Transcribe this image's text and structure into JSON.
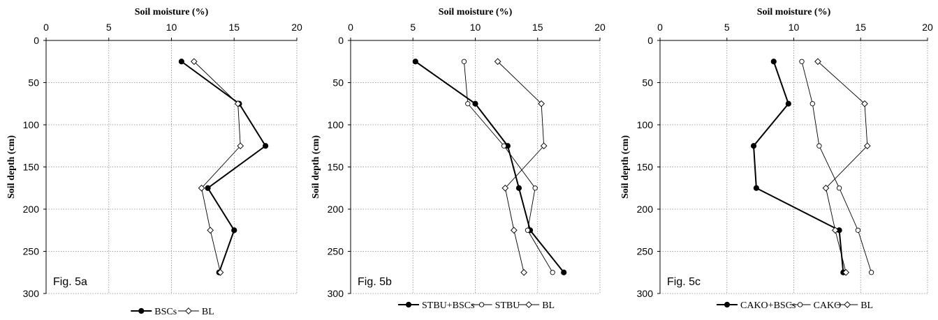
{
  "chart_data": [
    {
      "type": "line",
      "panel_label": "Fig. 5a",
      "xlabel": "Soil moisture (%)",
      "ylabel": "Soil depth (cm)",
      "xlim": [
        0,
        20
      ],
      "ylim": [
        0,
        300
      ],
      "y_inverted": true,
      "x_axis_position": "top",
      "x_ticks": [
        0,
        5,
        10,
        15,
        20
      ],
      "y_ticks": [
        0,
        50,
        100,
        150,
        200,
        250,
        300
      ],
      "grid": "dotted",
      "legend_position": "bottom",
      "series": [
        {
          "name": "BSCs",
          "marker": "filled-circle",
          "line_weight": "thick",
          "depth": [
            25,
            75,
            125,
            175,
            225,
            275
          ],
          "moisture": [
            10.8,
            15.4,
            17.5,
            12.9,
            15.0,
            13.8
          ]
        },
        {
          "name": "BL",
          "marker": "open-diamond",
          "line_weight": "thin",
          "depth": [
            25,
            75,
            125,
            175,
            225,
            275
          ],
          "moisture": [
            11.8,
            15.3,
            15.5,
            12.4,
            13.1,
            13.9
          ]
        }
      ]
    },
    {
      "type": "line",
      "panel_label": "Fig. 5b",
      "xlabel": "Soil moisture (%)",
      "ylabel": "Soil depth (cm)",
      "xlim": [
        0,
        20
      ],
      "ylim": [
        0,
        300
      ],
      "y_inverted": true,
      "x_axis_position": "top",
      "x_ticks": [
        0,
        5,
        10,
        15,
        20
      ],
      "y_ticks": [
        0,
        50,
        100,
        150,
        200,
        250,
        300
      ],
      "grid": "dotted",
      "legend_position": "bottom",
      "series": [
        {
          "name": "STBU+BSCs",
          "marker": "filled-circle",
          "line_weight": "thick",
          "depth": [
            25,
            75,
            125,
            175,
            225,
            275
          ],
          "moisture": [
            5.2,
            10.0,
            12.6,
            13.5,
            14.4,
            17.1
          ]
        },
        {
          "name": "STBU",
          "marker": "open-circle",
          "line_weight": "thin",
          "depth": [
            25,
            75,
            125,
            175,
            225,
            275
          ],
          "moisture": [
            9.1,
            9.4,
            12.3,
            14.8,
            14.2,
            16.2
          ]
        },
        {
          "name": "BL",
          "marker": "open-diamond",
          "line_weight": "thin",
          "depth": [
            25,
            75,
            125,
            175,
            225,
            275
          ],
          "moisture": [
            11.8,
            15.3,
            15.5,
            12.4,
            13.1,
            13.9
          ]
        }
      ]
    },
    {
      "type": "line",
      "panel_label": "Fig. 5c",
      "xlabel": "Soil moisture (%)",
      "ylabel": "Soil depth (cm)",
      "xlim": [
        0,
        20
      ],
      "ylim": [
        0,
        300
      ],
      "y_inverted": true,
      "x_axis_position": "top",
      "x_ticks": [
        0,
        5,
        10,
        15,
        20
      ],
      "y_ticks": [
        0,
        50,
        100,
        150,
        200,
        250,
        300
      ],
      "grid": "dotted",
      "legend_position": "bottom",
      "series": [
        {
          "name": "CAKO+BSCs",
          "marker": "filled-circle",
          "line_weight": "thick",
          "depth": [
            25,
            75,
            125,
            175,
            225,
            275
          ],
          "moisture": [
            8.5,
            9.6,
            7.0,
            7.2,
            13.4,
            13.7
          ]
        },
        {
          "name": "CAKO",
          "marker": "open-circle",
          "line_weight": "thin",
          "depth": [
            25,
            75,
            125,
            175,
            225,
            275
          ],
          "moisture": [
            10.6,
            11.4,
            11.9,
            13.4,
            14.8,
            15.8
          ]
        },
        {
          "name": "BL",
          "marker": "open-diamond",
          "line_weight": "thin",
          "depth": [
            25,
            75,
            125,
            175,
            225,
            275
          ],
          "moisture": [
            11.8,
            15.3,
            15.5,
            12.4,
            13.1,
            13.9
          ]
        }
      ]
    }
  ]
}
